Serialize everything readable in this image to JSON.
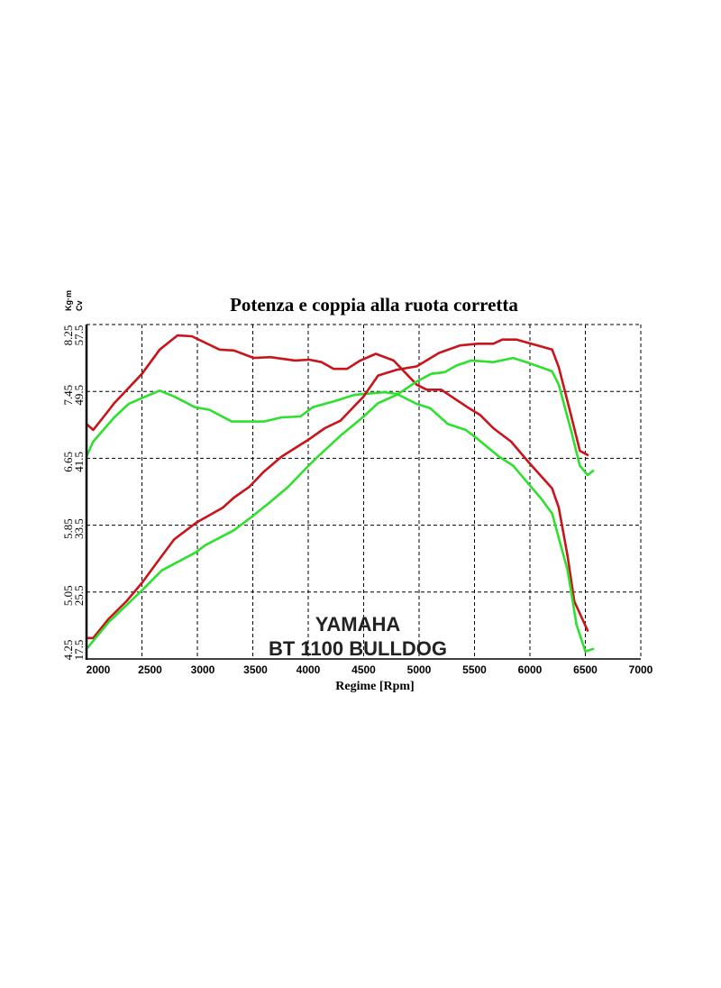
{
  "chart_data": {
    "type": "line",
    "title": "Potenza e coppia alla ruota corretta",
    "xlabel": "Regime [Rpm]",
    "xlim": [
      2000,
      7000
    ],
    "x_ticks": [
      2000,
      2500,
      3000,
      3500,
      4000,
      4500,
      5000,
      5500,
      6000,
      6500,
      7000
    ],
    "y_left_power": {
      "unit": "Cv",
      "lim": [
        17.5,
        57.5
      ],
      "ticks": [
        "17.5",
        "25.5",
        "33.5",
        "41.5",
        "49.5",
        "57.5"
      ]
    },
    "y_left_torque": {
      "unit": "Kg·m",
      "lim": [
        4.25,
        8.25
      ],
      "ticks": [
        "4.25",
        "5.05",
        "5.85",
        "6.65",
        "7.45",
        "8.25"
      ]
    },
    "grid": true,
    "annotations": [
      "YAMAHA",
      "BT 1100 BULLDOG"
    ],
    "colors": {
      "red": "#c8141a",
      "green": "#2ee02e"
    },
    "series": [
      {
        "id": "red-torque",
        "quantity": "torque",
        "color": "red",
        "x": [
          2000,
          2060,
          2150,
          2250,
          2500,
          2660,
          2820,
          2950,
          3200,
          3330,
          3510,
          3660,
          3880,
          4010,
          4120,
          4230,
          4350,
          4470,
          4610,
          4770,
          4980,
          5070,
          5200,
          5450,
          5550,
          5670,
          5830,
          5990,
          6200,
          6260,
          6340,
          6400,
          6520
        ],
        "y": [
          7.06,
          6.99,
          7.14,
          7.31,
          7.66,
          7.95,
          8.12,
          8.11,
          7.95,
          7.94,
          7.85,
          7.86,
          7.82,
          7.83,
          7.8,
          7.72,
          7.72,
          7.82,
          7.9,
          7.82,
          7.53,
          7.47,
          7.47,
          7.25,
          7.17,
          7.01,
          6.85,
          6.6,
          6.29,
          6.06,
          5.48,
          4.94,
          4.59
        ]
      },
      {
        "id": "green-torque",
        "quantity": "torque",
        "color": "green",
        "x": [
          2000,
          2060,
          2250,
          2380,
          2500,
          2660,
          2790,
          2980,
          3110,
          3310,
          3600,
          3760,
          3930,
          4040,
          4230,
          4420,
          4690,
          4800,
          4980,
          5100,
          5260,
          5420,
          5530,
          5720,
          5850,
          5990,
          6100,
          6200,
          6340,
          6420,
          6500,
          6570
        ],
        "y": [
          6.67,
          6.85,
          7.14,
          7.3,
          7.37,
          7.46,
          7.39,
          7.26,
          7.23,
          7.09,
          7.09,
          7.14,
          7.15,
          7.26,
          7.33,
          7.41,
          7.44,
          7.42,
          7.3,
          7.25,
          7.06,
          6.99,
          6.88,
          6.67,
          6.56,
          6.34,
          6.17,
          5.99,
          5.31,
          4.66,
          4.34,
          4.37
        ]
      },
      {
        "id": "red-power",
        "quantity": "power",
        "color": "red",
        "x": [
          2000,
          2060,
          2200,
          2360,
          2500,
          2600,
          2790,
          2990,
          3230,
          3330,
          3470,
          3600,
          3760,
          4010,
          4150,
          4290,
          4500,
          4630,
          4800,
          4980,
          5180,
          5370,
          5530,
          5670,
          5750,
          5880,
          6040,
          6200,
          6260,
          6370,
          6450,
          6520
        ],
        "y": [
          20.0,
          20.0,
          22.3,
          24.4,
          26.6,
          28.4,
          31.8,
          33.8,
          35.6,
          36.8,
          38.1,
          39.9,
          41.7,
          43.8,
          45.1,
          46.0,
          48.9,
          51.4,
          52.1,
          52.5,
          54.1,
          55.0,
          55.2,
          55.2,
          55.7,
          55.7,
          55.1,
          54.5,
          52.4,
          46.7,
          42.4,
          41.9
        ]
      },
      {
        "id": "green-power",
        "quantity": "power",
        "color": "green",
        "x": [
          2000,
          2200,
          2500,
          2680,
          2980,
          3070,
          3330,
          3500,
          3660,
          3820,
          3980,
          4070,
          4290,
          4500,
          4630,
          4800,
          4980,
          5110,
          5230,
          5340,
          5470,
          5670,
          5850,
          5990,
          6200,
          6260,
          6370,
          6450,
          6520,
          6570
        ],
        "y": [
          18.7,
          21.9,
          25.7,
          28.1,
          30.2,
          31.1,
          32.9,
          34.6,
          36.3,
          38.1,
          40.3,
          41.5,
          44.2,
          46.5,
          48.1,
          49.1,
          50.7,
          51.6,
          51.8,
          52.6,
          53.2,
          53.0,
          53.5,
          52.9,
          51.9,
          50.3,
          44.9,
          40.6,
          39.5,
          40.0
        ]
      }
    ]
  }
}
